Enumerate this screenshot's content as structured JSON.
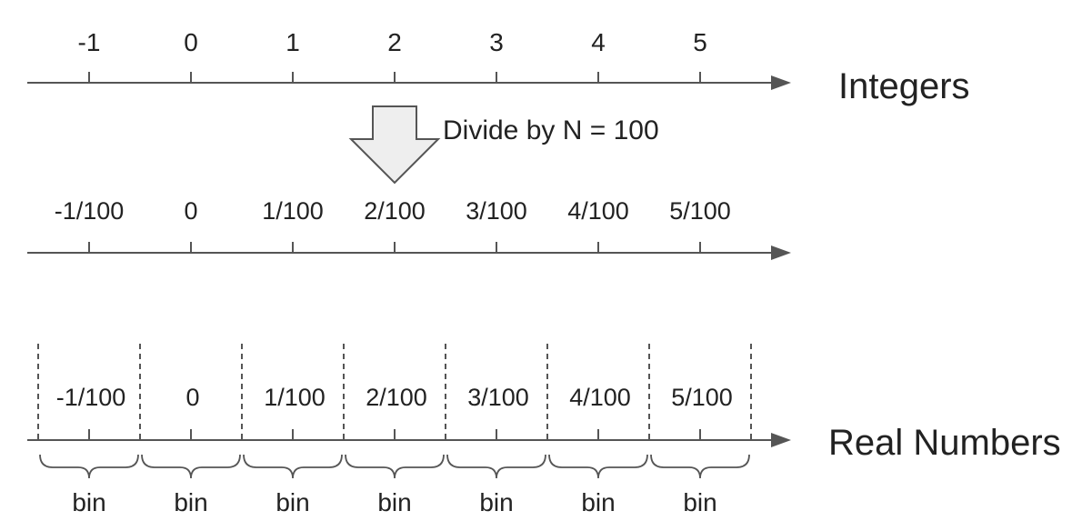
{
  "integer_axis": {
    "title": "Integers",
    "ticks": [
      "-1",
      "0",
      "1",
      "2",
      "3",
      "4",
      "5"
    ]
  },
  "transform": {
    "label": "Divide by N = 100"
  },
  "fraction_axis": {
    "ticks": [
      "-1/100",
      "0",
      "1/100",
      "2/100",
      "3/100",
      "4/100",
      "5/100"
    ]
  },
  "real_axis": {
    "title": "Real Numbers",
    "bin_labels": [
      "-1/100",
      "0",
      "1/100",
      "2/100",
      "3/100",
      "4/100",
      "5/100"
    ],
    "brace_label": "bin"
  },
  "colors": {
    "axis": "#555555",
    "arrow_fill": "#eeeeee",
    "arrow_stroke": "#555555",
    "text": "#222222"
  }
}
